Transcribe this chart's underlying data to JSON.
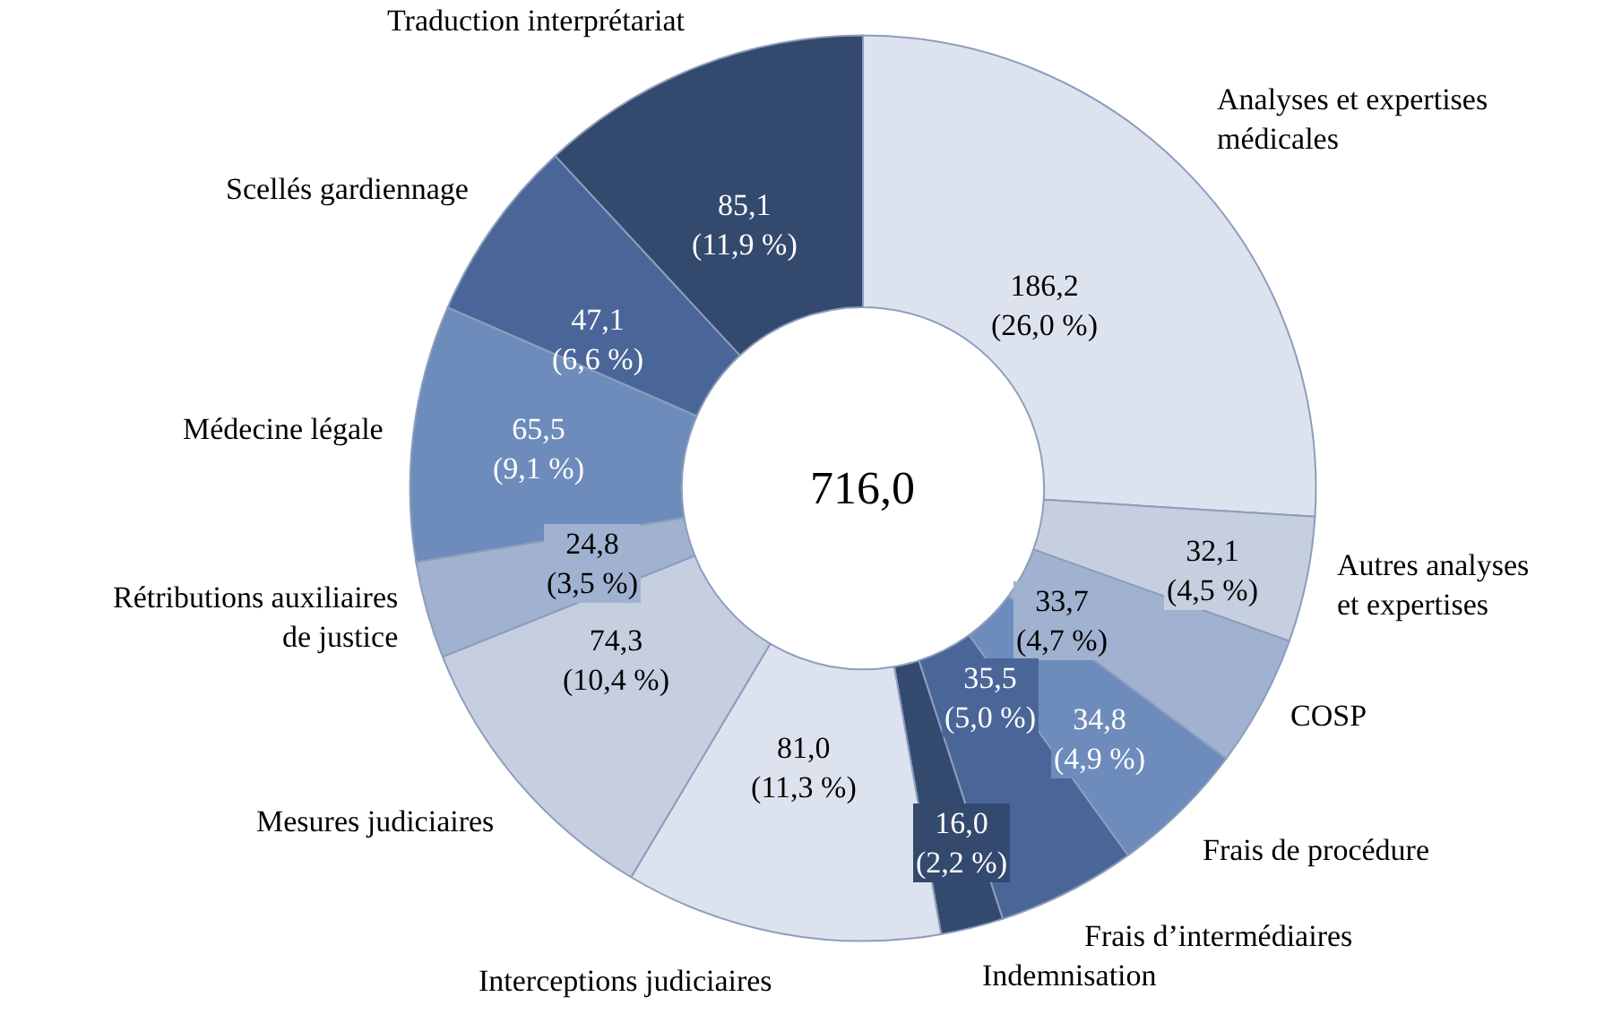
{
  "chart_data": {
    "type": "donut",
    "categories": [
      "Analyses et expertises\nmédicales",
      "Autres analyses\net expertises",
      "COSP",
      "Frais de procédure",
      "Frais d’intermédiaires",
      "Indemnisation",
      "Interceptions judiciaires",
      "Mesures judiciaires",
      "Rétributions auxiliaires\nde justice",
      "Médecine légale",
      "Scellés gardiennage",
      "Traduction interprétariat"
    ],
    "values": [
      186.2,
      32.1,
      33.7,
      34.8,
      35.5,
      16.0,
      81.0,
      74.3,
      24.8,
      65.5,
      47.1,
      85.1
    ],
    "value_labels": [
      "186,2\n(26,0 %)",
      "32,1\n(4,5 %)",
      "33,7\n(4,7 %)",
      "34,8\n(4,9 %)",
      "35,5\n(5,0 %)",
      "16,0\n(2,2 %)",
      "81,0\n(11,3 %)",
      "74,3\n(10,4 %)",
      "24,8\n(3,5 %)",
      "65,5\n(9,1 %)",
      "47,1\n(6,6 %)",
      "85,1\n(11,9 %)"
    ],
    "colors": [
      "#dde3ee",
      "#c5cfe0",
      "#a0b2d0",
      "#6e8cbb",
      "#4a6699",
      "#34496e",
      "#dde3ee",
      "#c5cfe0",
      "#a0b2d0",
      "#6e8cbb",
      "#4a6699",
      "#34496e"
    ],
    "annotations": [
      "716,0"
    ],
    "legend": false
  }
}
